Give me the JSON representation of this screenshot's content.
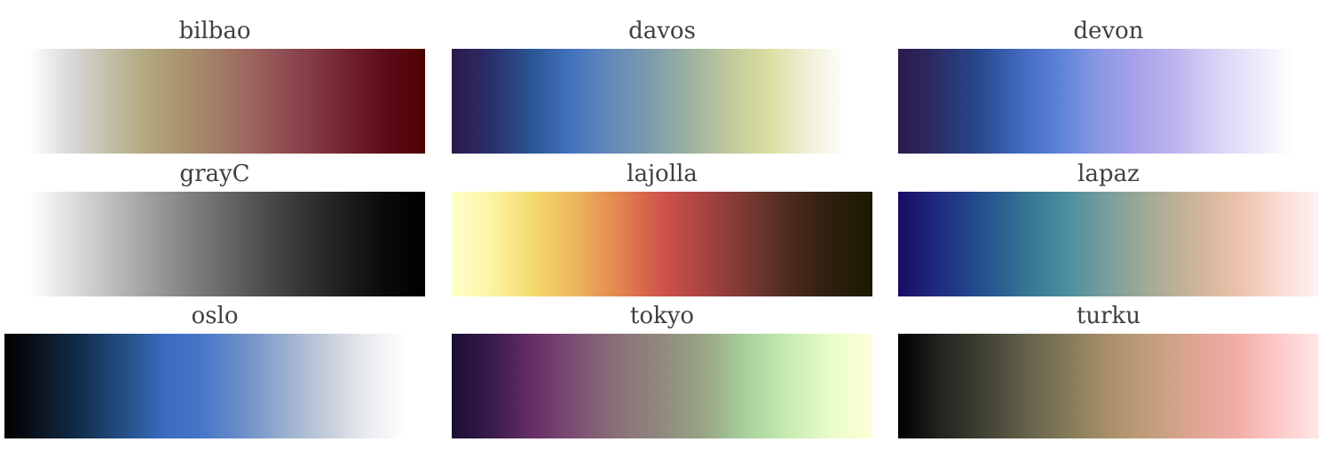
{
  "colormaps": [
    {
      "name": "bilbao",
      "stops": [
        "#ffffff",
        "#dadada",
        "#c2bfa9",
        "#b1a77c",
        "#a8906d",
        "#a17664",
        "#965a58",
        "#863f48",
        "#72232f",
        "#5d0c17",
        "#4d0000"
      ]
    },
    {
      "name": "davos",
      "stops": [
        "#2c1a4c",
        "#2a2f6a",
        "#2a5592",
        "#4273bf",
        "#6489ba",
        "#7b9cac",
        "#9cb1a1",
        "#c0c89d",
        "#dbde9f",
        "#f0f0d6",
        "#ffffff"
      ]
    },
    {
      "name": "devon",
      "stops": [
        "#2c1a4c",
        "#2a2e66",
        "#28468a",
        "#3f67b9",
        "#5a80d8",
        "#8797e3",
        "#a8a1ea",
        "#bcb5ee",
        "#d6d1f5",
        "#ebe9fa",
        "#ffffff"
      ]
    },
    {
      "name": "grayC",
      "stops": [
        "#ffffff",
        "#e0e0e0",
        "#c0c0c0",
        "#a0a0a0",
        "#828282",
        "#666666",
        "#4b4b4b",
        "#333333",
        "#1d1d1d",
        "#0a0a0a",
        "#000000"
      ]
    },
    {
      "name": "lajolla",
      "stops": [
        "#ffffcc",
        "#fbf2a0",
        "#f4d86a",
        "#ecb35a",
        "#e2844f",
        "#cf5349",
        "#a94341",
        "#7a3932",
        "#4e2b1f",
        "#2e1f0e",
        "#191900"
      ]
    },
    {
      "name": "lapaz",
      "stops": [
        "#1a0c64",
        "#1f2d82",
        "#25508f",
        "#337493",
        "#4c8e9d",
        "#7a9f9c",
        "#a5ab97",
        "#cbb398",
        "#ebc0a8",
        "#fad9d0",
        "#fef2f3"
      ]
    },
    {
      "name": "oslo",
      "stops": [
        "#000000",
        "#0c1725",
        "#123152",
        "#245086",
        "#3a6bbf",
        "#4a78c9",
        "#6f90c7",
        "#9aafcf",
        "#c3ccd9",
        "#e8eaee",
        "#ffffff"
      ]
    },
    {
      "name": "tokyo",
      "stops": [
        "#1a0e34",
        "#3b1c4e",
        "#6a3068",
        "#7d5273",
        "#8a7278",
        "#91897f",
        "#98a587",
        "#a7d19c",
        "#c6ecb1",
        "#e8fcc8",
        "#ffffd8"
      ]
    },
    {
      "name": "turku",
      "stops": [
        "#000000",
        "#232320",
        "#3f3f33",
        "#636049",
        "#847a58",
        "#a98f6a",
        "#c29e7c",
        "#dda591",
        "#f1aca6",
        "#fcc8c7",
        "#ffe6e6"
      ]
    }
  ]
}
